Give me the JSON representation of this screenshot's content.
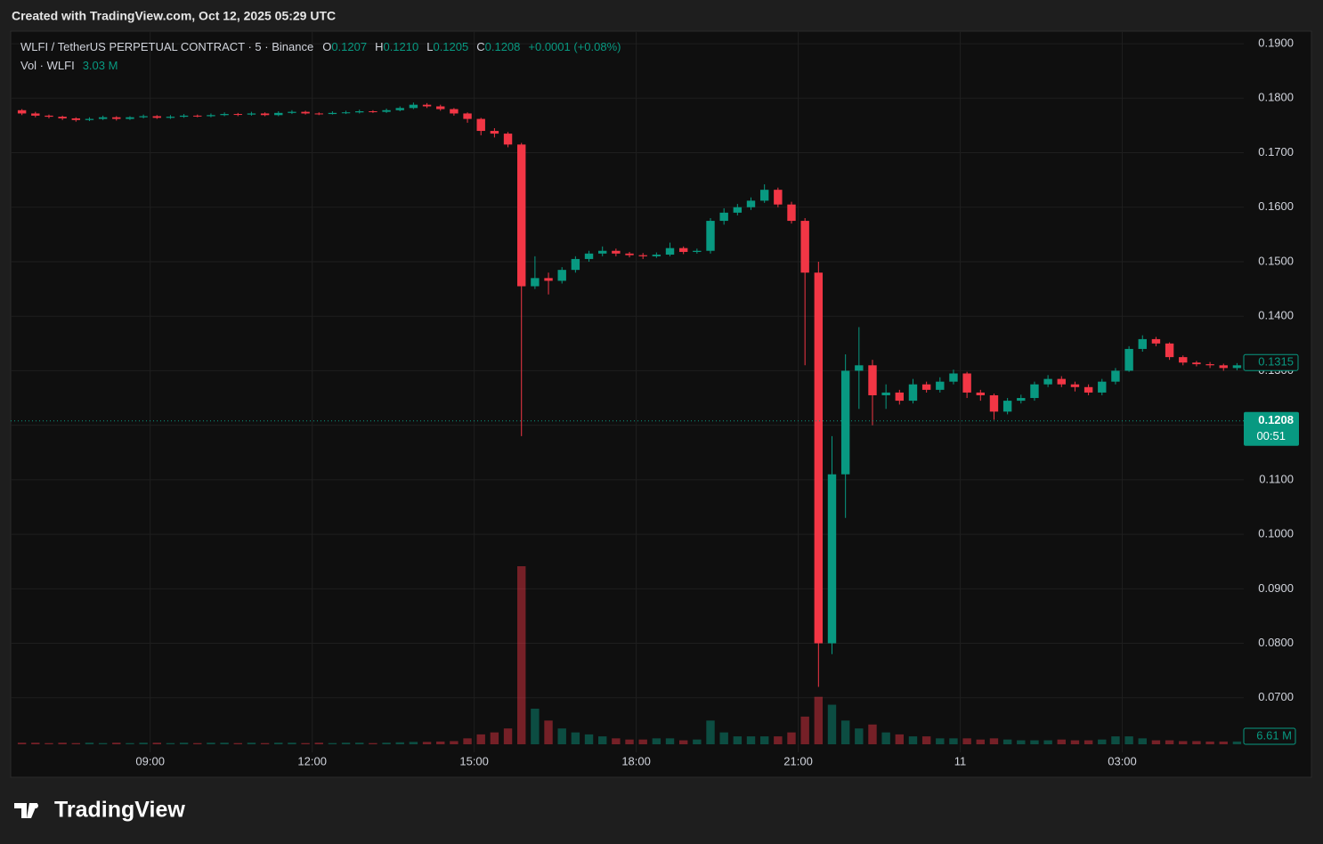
{
  "header": {
    "created": "Created with TradingView.com, Oct 12, 2025 05:29 UTC"
  },
  "footer": {
    "brand": "TradingView"
  },
  "chart_data": {
    "type": "candlestick",
    "title": "WLFI / TetherUS PERPETUAL CONTRACT · 5 · Binance",
    "legend": [
      {
        "label": "O",
        "value": "0.1207"
      },
      {
        "label": "H",
        "value": "0.1210"
      },
      {
        "label": "L",
        "value": "0.1205"
      },
      {
        "label": "C",
        "value": "0.1208"
      }
    ],
    "change": "+0.0001 (+0.08%)",
    "volume_legend": {
      "label": "Vol · WLFI",
      "value": "3.03 M"
    },
    "up_color": "#089981",
    "down_color": "#f23645",
    "x": [
      "06:30",
      "06:45",
      "07:00",
      "07:15",
      "07:30",
      "07:45",
      "08:00",
      "08:15",
      "08:30",
      "08:45",
      "09:00",
      "09:15",
      "09:30",
      "09:45",
      "10:00",
      "10:15",
      "10:30",
      "10:45",
      "11:00",
      "11:15",
      "11:30",
      "11:45",
      "12:00",
      "12:15",
      "12:30",
      "12:45",
      "13:00",
      "13:15",
      "13:30",
      "13:45",
      "14:00",
      "14:15",
      "14:30",
      "14:45",
      "15:00",
      "15:15",
      "15:30",
      "15:45",
      "16:00",
      "16:15",
      "16:30",
      "16:45",
      "17:00",
      "17:15",
      "17:30",
      "17:45",
      "18:00",
      "18:15",
      "18:30",
      "18:45",
      "19:00",
      "19:15",
      "19:30",
      "19:45",
      "20:00",
      "20:15",
      "20:30",
      "20:45",
      "21:00",
      "21:15",
      "21:30",
      "21:45",
      "22:00",
      "22:15",
      "22:30",
      "22:45",
      "23:00",
      "23:15",
      "23:30",
      "23:45",
      "00:00",
      "00:15",
      "00:30",
      "00:45",
      "01:00",
      "01:15",
      "01:30",
      "01:45",
      "02:00",
      "02:15",
      "02:30",
      "02:45",
      "03:00",
      "03:15",
      "03:30",
      "03:45",
      "04:00",
      "04:15",
      "04:30",
      "04:45",
      "05:00"
    ],
    "open": [
      0.1778,
      0.1772,
      0.1768,
      0.1766,
      0.1763,
      0.176,
      0.1762,
      0.1765,
      0.1762,
      0.1765,
      0.1767,
      0.1764,
      0.1766,
      0.1768,
      0.1767,
      0.1769,
      0.1771,
      0.177,
      0.1772,
      0.1769,
      0.1773,
      0.1775,
      0.1772,
      0.1771,
      0.1773,
      0.1774,
      0.1776,
      0.1775,
      0.1778,
      0.1782,
      0.1788,
      0.1785,
      0.178,
      0.1772,
      0.1762,
      0.174,
      0.1735,
      0.1715,
      0.1455,
      0.147,
      0.1465,
      0.1485,
      0.1505,
      0.1515,
      0.152,
      0.1515,
      0.1512,
      0.151,
      0.1513,
      0.1525,
      0.1518,
      0.152,
      0.1575,
      0.159,
      0.16,
      0.1612,
      0.1632,
      0.1605,
      0.1575,
      0.148,
      0.08,
      0.111,
      0.13,
      0.131,
      0.1255,
      0.126,
      0.1245,
      0.1275,
      0.1265,
      0.128,
      0.1295,
      0.126,
      0.1255,
      0.1225,
      0.1245,
      0.125,
      0.1275,
      0.1285,
      0.1275,
      0.127,
      0.126,
      0.128,
      0.13,
      0.134,
      0.1358,
      0.135,
      0.1325,
      0.1315,
      0.1312,
      0.131,
      0.1305
    ],
    "high": [
      0.178,
      0.1775,
      0.177,
      0.1768,
      0.1765,
      0.1765,
      0.1768,
      0.1767,
      0.1767,
      0.177,
      0.1769,
      0.1769,
      0.1771,
      0.177,
      0.1772,
      0.1774,
      0.1773,
      0.1775,
      0.1774,
      0.1776,
      0.1778,
      0.1777,
      0.1774,
      0.1776,
      0.1777,
      0.1779,
      0.1778,
      0.1781,
      0.1785,
      0.1792,
      0.1791,
      0.1788,
      0.1782,
      0.1774,
      0.1764,
      0.1745,
      0.1738,
      0.1718,
      0.151,
      0.148,
      0.149,
      0.151,
      0.152,
      0.1528,
      0.1524,
      0.1518,
      0.1516,
      0.1517,
      0.1535,
      0.1528,
      0.1524,
      0.158,
      0.1598,
      0.1606,
      0.1618,
      0.1642,
      0.1636,
      0.161,
      0.158,
      0.15,
      0.118,
      0.133,
      0.138,
      0.132,
      0.1275,
      0.1265,
      0.1285,
      0.128,
      0.1288,
      0.1302,
      0.1298,
      0.1265,
      0.1258,
      0.125,
      0.1256,
      0.128,
      0.1292,
      0.129,
      0.128,
      0.1275,
      0.1285,
      0.1305,
      0.1345,
      0.1365,
      0.1362,
      0.1352,
      0.1328,
      0.1318,
      0.1316,
      0.1313,
      0.1314
    ],
    "low": [
      0.1769,
      0.1765,
      0.1763,
      0.176,
      0.1757,
      0.1758,
      0.176,
      0.1759,
      0.176,
      0.1763,
      0.1762,
      0.1762,
      0.1764,
      0.1765,
      0.1765,
      0.1767,
      0.1767,
      0.1768,
      0.1767,
      0.1767,
      0.1771,
      0.177,
      0.1769,
      0.177,
      0.1771,
      0.1772,
      0.1773,
      0.1773,
      0.1776,
      0.178,
      0.1782,
      0.1777,
      0.1768,
      0.1755,
      0.1732,
      0.1728,
      0.171,
      0.118,
      0.145,
      0.144,
      0.146,
      0.148,
      0.15,
      0.151,
      0.151,
      0.1508,
      0.1505,
      0.1507,
      0.151,
      0.1514,
      0.1515,
      0.1515,
      0.1568,
      0.1585,
      0.1595,
      0.1608,
      0.16,
      0.157,
      0.131,
      0.072,
      0.078,
      0.103,
      0.123,
      0.12,
      0.123,
      0.1238,
      0.124,
      0.126,
      0.126,
      0.1275,
      0.125,
      0.1245,
      0.121,
      0.122,
      0.124,
      0.1245,
      0.127,
      0.127,
      0.1262,
      0.1255,
      0.1255,
      0.1275,
      0.1298,
      0.1335,
      0.1345,
      0.132,
      0.131,
      0.1308,
      0.1305,
      0.13,
      0.1301
    ],
    "close": [
      0.1772,
      0.1768,
      0.1766,
      0.1763,
      0.176,
      0.1762,
      0.1765,
      0.1762,
      0.1765,
      0.1767,
      0.1764,
      0.1766,
      0.1768,
      0.1767,
      0.1769,
      0.1771,
      0.177,
      0.1772,
      0.1769,
      0.1773,
      0.1775,
      0.1772,
      0.1771,
      0.1773,
      0.1774,
      0.1776,
      0.1775,
      0.1778,
      0.1782,
      0.1788,
      0.1785,
      0.178,
      0.1772,
      0.1762,
      0.174,
      0.1735,
      0.1715,
      0.1455,
      0.147,
      0.1465,
      0.1485,
      0.1505,
      0.1515,
      0.152,
      0.1515,
      0.1512,
      0.151,
      0.1513,
      0.1525,
      0.1518,
      0.152,
      0.1575,
      0.159,
      0.16,
      0.1612,
      0.1632,
      0.1605,
      0.1575,
      0.148,
      0.08,
      0.111,
      0.13,
      0.131,
      0.1255,
      0.126,
      0.1245,
      0.1275,
      0.1265,
      0.128,
      0.1295,
      0.126,
      0.1255,
      0.1225,
      0.1245,
      0.125,
      0.1275,
      0.1285,
      0.1275,
      0.127,
      0.126,
      0.128,
      0.13,
      0.134,
      0.1358,
      0.135,
      0.1325,
      0.1315,
      0.1312,
      0.131,
      0.1305,
      0.131
    ],
    "volume": [
      0.4,
      0.4,
      0.3,
      0.4,
      0.3,
      0.4,
      0.3,
      0.4,
      0.3,
      0.4,
      0.4,
      0.3,
      0.4,
      0.3,
      0.4,
      0.4,
      0.3,
      0.4,
      0.3,
      0.4,
      0.4,
      0.3,
      0.4,
      0.3,
      0.4,
      0.4,
      0.3,
      0.4,
      0.5,
      0.6,
      0.6,
      0.7,
      0.8,
      1.5,
      2.5,
      3.0,
      4.0,
      45,
      9,
      6,
      4,
      3,
      2.5,
      2,
      1.5,
      1.2,
      1.2,
      1.5,
      1.5,
      1,
      1.2,
      6,
      3,
      2,
      2,
      2,
      2,
      3,
      7,
      12,
      10,
      6,
      4,
      5,
      3,
      2.5,
      2,
      2,
      1.5,
      1.5,
      1.5,
      1.2,
      1.5,
      1.2,
      1,
      1,
      1,
      1.2,
      1,
      1,
      1.2,
      2,
      2,
      1.5,
      1,
      1,
      0.8,
      0.8,
      0.7,
      0.7,
      0.7
    ],
    "xlim": [
      "06:25",
      "05:15"
    ],
    "xticks": [
      "09:00",
      "12:00",
      "15:00",
      "18:00",
      "21:00",
      {
        "value": "00:00",
        "label": "11"
      },
      "03:00"
    ],
    "ylim": [
      0.06,
      0.1923
    ],
    "yticks": [
      {
        "value": 0.07,
        "label": "0.0700"
      },
      {
        "value": 0.08,
        "label": "0.0800"
      },
      {
        "value": 0.09,
        "label": "0.0900"
      },
      {
        "value": 0.1,
        "label": "0.1000"
      },
      {
        "value": 0.11,
        "label": "0.1100"
      },
      {
        "value": 0.12,
        "label": "0.1200"
      },
      {
        "value": 0.13,
        "label": "0.1300"
      },
      {
        "value": 0.14,
        "label": "0.1400"
      },
      {
        "value": 0.15,
        "label": "0.1500"
      },
      {
        "value": 0.16,
        "label": "0.1600"
      },
      {
        "value": 0.17,
        "label": "0.1700"
      },
      {
        "value": 0.18,
        "label": "0.1800"
      },
      {
        "value": 0.19,
        "label": "0.1900"
      }
    ],
    "grid": true,
    "price_tags": [
      {
        "value": 0.1315,
        "label": "0.1315"
      },
      {
        "value": 0.1208,
        "label": "0.1208",
        "countdown": "00:51"
      }
    ],
    "volume_tag": "6.61 M"
  }
}
